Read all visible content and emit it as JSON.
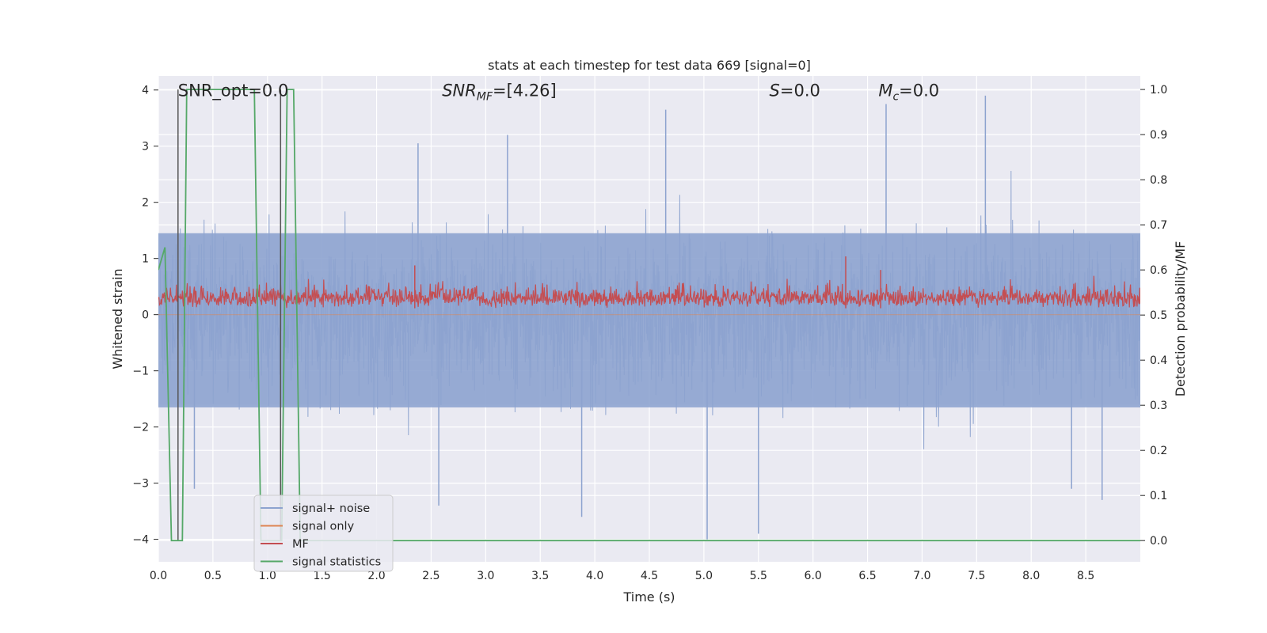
{
  "chart_data": {
    "type": "line",
    "title": "stats at each timestep for test data 669 [signal=0]",
    "xlabel": "Time (s)",
    "ylabel": "Whitened strain",
    "ylabel_right": "Detection probability/MF",
    "xlim": [
      0.0,
      9.0
    ],
    "ylim": [
      -4.4,
      4.25
    ],
    "ylim_right": [
      -0.047,
      1.03
    ],
    "x_ticks": [
      "0.0",
      "0.5",
      "1.0",
      "1.5",
      "2.0",
      "2.5",
      "3.0",
      "3.5",
      "4.0",
      "4.5",
      "5.0",
      "5.5",
      "6.0",
      "6.5",
      "7.0",
      "7.5",
      "8.0",
      "8.5"
    ],
    "x_tick_values": [
      0.0,
      0.5,
      1.0,
      1.5,
      2.0,
      2.5,
      3.0,
      3.5,
      4.0,
      4.5,
      5.0,
      5.5,
      6.0,
      6.5,
      7.0,
      7.5,
      8.0,
      8.5
    ],
    "y_ticks": [
      "−4",
      "−3",
      "−2",
      "−1",
      "0",
      "1",
      "2",
      "3",
      "4"
    ],
    "y_tick_values": [
      -4,
      -3,
      -2,
      -1,
      0,
      1,
      2,
      3,
      4
    ],
    "y_right_ticks": [
      "0.0",
      "0.1",
      "0.2",
      "0.3",
      "0.4",
      "0.5",
      "0.6",
      "0.7",
      "0.8",
      "0.9",
      "1.0"
    ],
    "y_right_tick_values": [
      0.0,
      0.1,
      0.2,
      0.3,
      0.4,
      0.5,
      0.6,
      0.7,
      0.8,
      0.9,
      1.0
    ],
    "grid": true,
    "legend_position": "lower-left",
    "annotations": [
      {
        "text": "SNR_opt=0.0",
        "x": 0.18,
        "y": 4.0
      },
      {
        "text": "SNR_MF=[4.26]",
        "x": 2.6,
        "y": 4.0
      },
      {
        "text": "S=0.0",
        "x": 5.6,
        "y": 4.0
      },
      {
        "text": "M_c=0.0",
        "x": 6.6,
        "y": 4.0
      }
    ],
    "vlines": [
      0.18,
      1.12
    ],
    "series": [
      {
        "name": "signal+ noise",
        "color": "#8da3cf",
        "kind": "noise",
        "amplitude_typical": 1.5,
        "peaks": [
          [
            3.88,
            -3.6
          ],
          [
            4.65,
            3.65
          ],
          [
            5.03,
            -4.0
          ],
          [
            5.5,
            -3.9
          ],
          [
            6.67,
            3.75
          ],
          [
            7.58,
            3.9
          ],
          [
            8.65,
            -3.3
          ],
          [
            8.37,
            -3.1
          ],
          [
            2.57,
            -3.4
          ],
          [
            2.38,
            3.05
          ],
          [
            3.2,
            3.2
          ],
          [
            0.33,
            -3.1
          ]
        ]
      },
      {
        "name": "signal only",
        "color": "#dd8452",
        "kind": "flat",
        "value": 0.0
      },
      {
        "name": "MF",
        "color": "#c44e52",
        "kind": "mf",
        "axis": "right",
        "baseline": 0.515,
        "band": [
          0.5,
          0.62
        ],
        "peaks": [
          [
            6.3,
            0.63
          ],
          [
            6.62,
            0.6
          ],
          [
            2.35,
            0.61
          ]
        ]
      },
      {
        "name": "signal statistics",
        "color": "#55a868",
        "kind": "stat",
        "axis": "right",
        "x": [
          0.0,
          0.06,
          0.12,
          0.17,
          0.22,
          0.26,
          0.88,
          0.94,
          1.08,
          1.13,
          1.18,
          1.24,
          1.3,
          1.35,
          9.0
        ],
        "values": [
          0.6,
          0.65,
          0.0,
          0.0,
          0.0,
          1.0,
          1.0,
          0.0,
          0.0,
          0.0,
          1.0,
          1.0,
          0.0,
          0.0,
          0.0
        ]
      }
    ]
  }
}
